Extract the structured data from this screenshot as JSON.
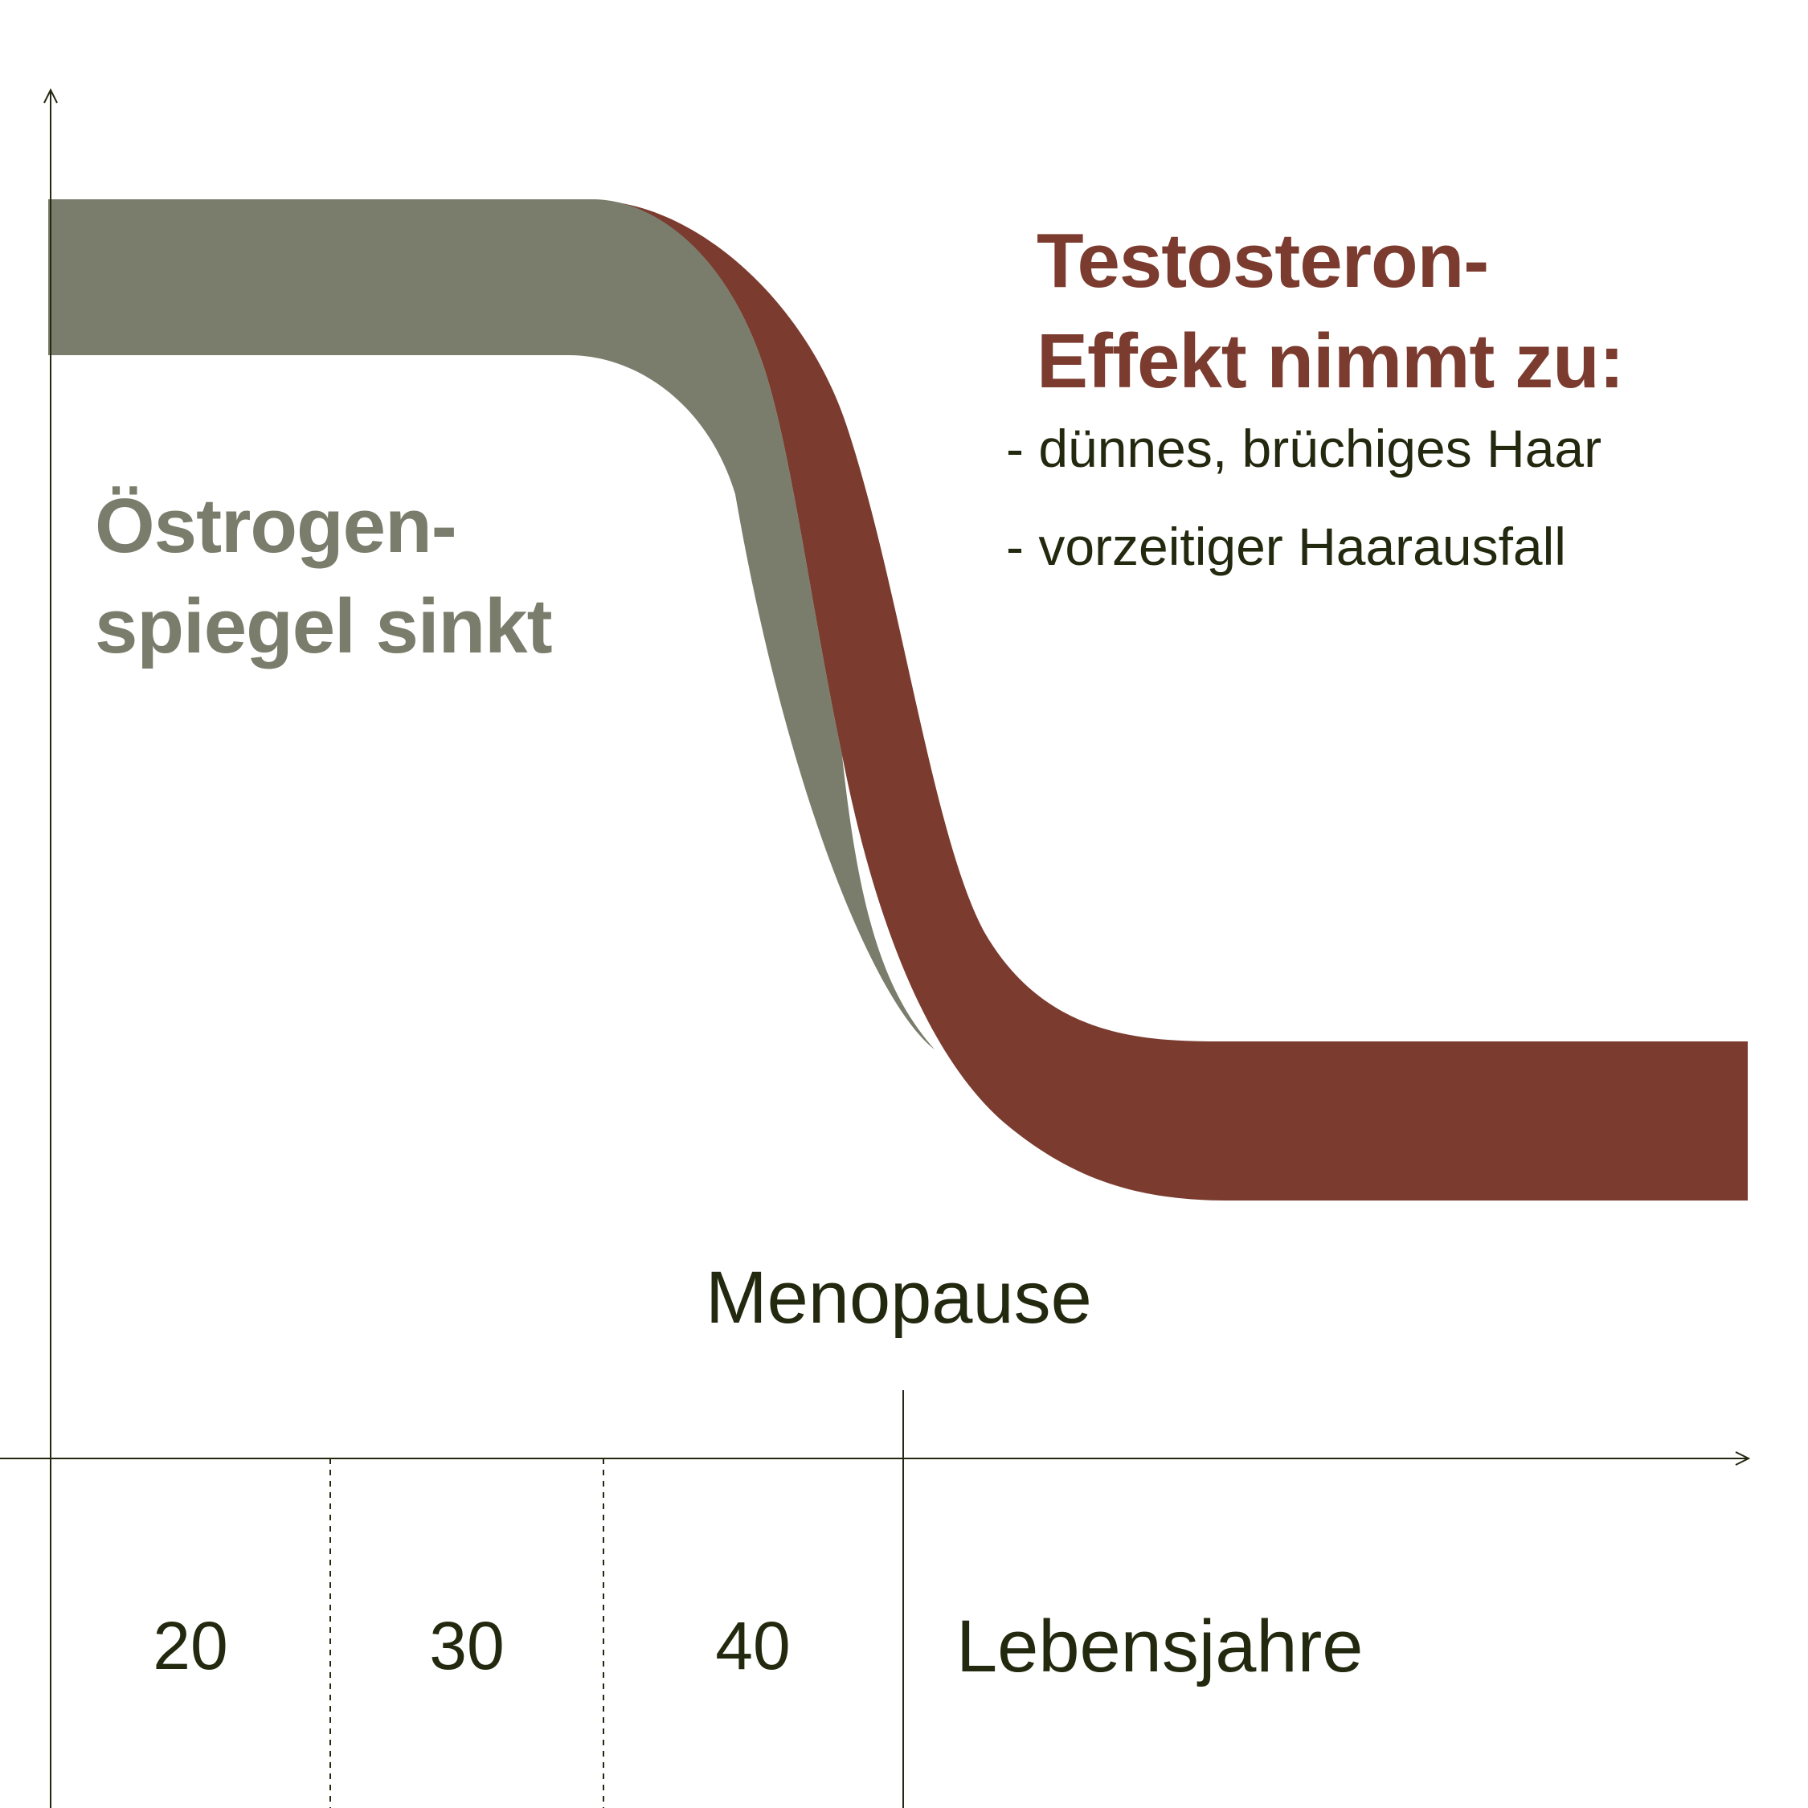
{
  "colors": {
    "estrogen": "#7a7d6b",
    "testosterone": "#7b3b2f",
    "text_dark": "#23290f",
    "axis": "#23290f",
    "background": "#ffffff"
  },
  "chart_data": {
    "type": "area",
    "title": "",
    "xlabel": "Lebensjahre",
    "ylabel": "",
    "x_ticks": [
      "20",
      "30",
      "40"
    ],
    "marker": {
      "label": "Menopause"
    },
    "grid": false,
    "series": [
      {
        "name": "Östrogenspiegel sinkt",
        "trend": "high until about age 40, then steep decline around menopause"
      },
      {
        "name": "Testosteron-Effekt nimmt zu",
        "trend": "overlaps estrogen band, descends later and remains at a lower plateau after menopause"
      }
    ]
  },
  "labels": {
    "estrogen": [
      "Östrogen-",
      "spiegel sinkt"
    ],
    "testosterone_title": [
      "Testosteron-",
      "Effekt nimmt zu:"
    ],
    "testosterone_items": [
      "- dünnes, brüchiges Haar",
      "- vorzeitiger Haarausfall"
    ],
    "menopause": "Menopause",
    "x_axis": "Lebensjahre",
    "ticks": [
      "20",
      "30",
      "40"
    ]
  }
}
